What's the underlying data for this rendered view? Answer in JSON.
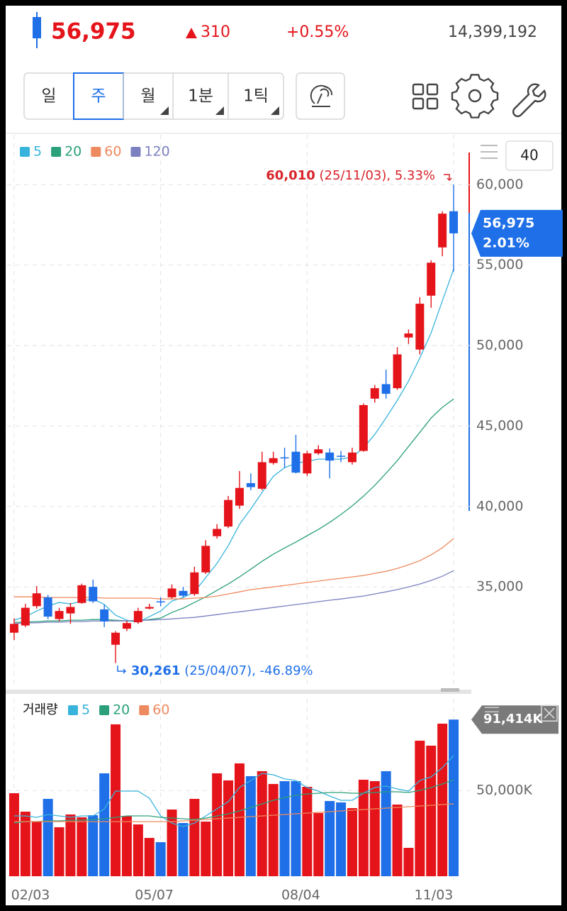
{
  "header": {
    "price": "56,975",
    "change": "310",
    "change_rate": "+0.55%",
    "volume": "14,399,192"
  },
  "toolbar": {
    "periods": [
      "일",
      "주",
      "월",
      "1분",
      "1틱"
    ],
    "selected": "주",
    "with_menu": [
      "월",
      "1분",
      "1틱"
    ]
  },
  "chart_data": [
    {
      "type": "candlestick",
      "visible_count": 40,
      "open": [
        32150,
        32600,
        33800,
        34350,
        33000,
        33350,
        34000,
        35000,
        33600,
        31400,
        32400,
        32800,
        33650,
        34100,
        34350,
        34750,
        34550,
        35900,
        38150,
        38750,
        40050,
        41450,
        41100,
        42700,
        43050,
        43400,
        42050,
        43300,
        43350,
        43150,
        42750,
        43450,
        46700,
        47600,
        47350,
        50500,
        49750,
        53100,
        56100,
        58350
      ],
      "high": [
        33050,
        33950,
        35050,
        34500,
        33700,
        34000,
        35200,
        35450,
        33900,
        32250,
        32900,
        33700,
        33950,
        34350,
        35150,
        35000,
        36250,
        37900,
        38900,
        40650,
        42200,
        42050,
        43400,
        43400,
        43650,
        44450,
        43450,
        43800,
        43600,
        43450,
        43650,
        46400,
        47550,
        48500,
        49900,
        51000,
        53000,
        55300,
        58350,
        60010
      ],
      "low": [
        31700,
        32500,
        33650,
        33000,
        32850,
        32700,
        33950,
        34000,
        32500,
        30261,
        32250,
        32700,
        33600,
        33800,
        34250,
        34350,
        34450,
        35800,
        38000,
        38650,
        39850,
        41000,
        41000,
        42600,
        42400,
        42050,
        41900,
        43200,
        41750,
        42750,
        42600,
        43400,
        46450,
        46700,
        47250,
        50100,
        49450,
        52350,
        55550,
        54600
      ],
      "close": [
        32700,
        33700,
        34600,
        33150,
        33500,
        33750,
        35100,
        34100,
        32850,
        32150,
        32750,
        33500,
        33750,
        34100,
        34900,
        34450,
        35900,
        37550,
        38600,
        40400,
        41150,
        41200,
        42750,
        43000,
        43050,
        42100,
        43300,
        43550,
        42850,
        43150,
        43350,
        46300,
        47350,
        47000,
        49450,
        50750,
        52600,
        55150,
        58200,
        56975
      ],
      "up_color": "#e5141b",
      "down_color": "#1e6fe8",
      "series": [
        {
          "name": "5",
          "color": "#38b4dc",
          "values": [
            32930,
            33150,
            33500,
            33810,
            34030,
            33940,
            34120,
            34250,
            33900,
            33240,
            32930,
            32800,
            33150,
            33500,
            34120,
            34340,
            34690,
            35580,
            36460,
            37560,
            38880,
            39850,
            40870,
            41880,
            42410,
            42680,
            42810,
            42940,
            42940,
            42940,
            43070,
            43640,
            44480,
            45500,
            46600,
            47790,
            49240,
            50790,
            52770,
            54760
          ]
        },
        {
          "name": "20",
          "color": "#2ba07b",
          "values": [
            32800,
            32800,
            32840,
            32880,
            32880,
            32930,
            32930,
            32970,
            32970,
            32930,
            32880,
            32880,
            32970,
            33060,
            33410,
            33680,
            34030,
            34380,
            34780,
            35180,
            35620,
            36100,
            36590,
            37030,
            37420,
            37780,
            38180,
            38570,
            39010,
            39500,
            40030,
            40640,
            41310,
            42060,
            42850,
            43730,
            44610,
            45500,
            46160,
            46680
          ]
        },
        {
          "name": "60",
          "color": "#ee8a5f",
          "values": [
            34380,
            34380,
            34380,
            34340,
            34340,
            34340,
            34340,
            34340,
            34300,
            34300,
            34300,
            34300,
            34300,
            34250,
            34250,
            34250,
            34300,
            34340,
            34430,
            34560,
            34690,
            34830,
            34910,
            35000,
            35090,
            35180,
            35270,
            35360,
            35450,
            35530,
            35620,
            35710,
            35840,
            35970,
            36150,
            36370,
            36630,
            36990,
            37430,
            38000
          ]
        },
        {
          "name": "120",
          "color": "#7b80c0",
          "values": [
            32710,
            32760,
            32760,
            32800,
            32800,
            32840,
            32840,
            32880,
            32880,
            32880,
            32880,
            32930,
            32930,
            32970,
            33010,
            33060,
            33100,
            33190,
            33280,
            33370,
            33450,
            33540,
            33630,
            33720,
            33810,
            33900,
            33990,
            34080,
            34170,
            34250,
            34340,
            34430,
            34560,
            34690,
            34830,
            35000,
            35180,
            35400,
            35660,
            36010
          ]
        }
      ],
      "ylim": [
        28700,
        63100
      ],
      "yticks": [
        {
          "value": 35000,
          "label": "35,000"
        },
        {
          "value": 40000,
          "label": "40,000"
        },
        {
          "value": 45000,
          "label": "45,000"
        },
        {
          "value": 50000,
          "label": "50,000"
        },
        {
          "value": 55000,
          "label": "55,000"
        },
        {
          "value": 60000,
          "label": "60,000"
        }
      ],
      "grid": true,
      "high_annotation": {
        "price": "60,010",
        "detail": "(25/11/03), 5.33%"
      },
      "low_annotation": {
        "price": "30,261",
        "detail": "(25/04/07), -46.89%"
      },
      "last_label": {
        "price": "56,975",
        "rate": "2.01%"
      }
    },
    {
      "type": "bar",
      "title": "거래량",
      "categories": [
        "02/03",
        null,
        null,
        null,
        null,
        null,
        null,
        null,
        null,
        null,
        null,
        null,
        null,
        "05/07",
        null,
        null,
        null,
        null,
        null,
        null,
        null,
        null,
        null,
        null,
        null,
        null,
        "08/04",
        null,
        null,
        null,
        null,
        null,
        null,
        null,
        null,
        null,
        null,
        null,
        null,
        "11/03"
      ],
      "values": [
        48450,
        37690,
        31890,
        45140,
        28580,
        36030,
        34370,
        35620,
        60050,
        88630,
        35200,
        30230,
        22360,
        19880,
        38930,
        31060,
        45140,
        31890,
        60050,
        55910,
        65850,
        58390,
        61290,
        53840,
        55490,
        55490,
        52180,
        36860,
        43900,
        43070,
        39760,
        56320,
        55490,
        61290,
        41830,
        16570,
        79100,
        76200,
        89040,
        91414
      ],
      "value_labels": [
        null,
        null,
        null,
        null,
        null,
        null,
        null,
        null,
        null,
        null,
        null,
        null,
        null,
        null,
        null,
        null,
        null,
        null,
        null,
        null,
        null,
        null,
        null,
        null,
        null,
        null,
        null,
        null,
        null,
        null,
        null,
        null,
        null,
        null,
        null,
        null,
        null,
        null,
        null,
        "91,414K"
      ],
      "series": [
        {
          "name": "5",
          "color": "#38b4dc",
          "values": [
            35200,
            35200,
            34370,
            36030,
            35200,
            34370,
            35200,
            35200,
            39340,
            49700,
            49700,
            49700,
            45560,
            35200,
            31060,
            28990,
            31060,
            35200,
            39340,
            43480,
            51770,
            55910,
            60050,
            59220,
            56740,
            55910,
            51770,
            49700,
            46800,
            44310,
            44310,
            48450,
            51770,
            52600,
            50940,
            49700,
            55910,
            57980,
            63360,
            70400
          ]
        },
        {
          "name": "20",
          "color": "#2ba07b",
          "values": [
            31060,
            31890,
            31890,
            32300,
            32300,
            32720,
            32720,
            33130,
            33550,
            34370,
            35200,
            35200,
            35200,
            34370,
            33960,
            33550,
            33130,
            33960,
            35200,
            36440,
            38100,
            40170,
            42240,
            44310,
            45970,
            47210,
            48040,
            48450,
            48870,
            48870,
            48450,
            48450,
            48870,
            49280,
            49280,
            48870,
            50110,
            51770,
            53840,
            56320
          ]
        },
        {
          "name": "60",
          "color": "#ee8a5f",
          "values": [
            31890,
            31890,
            31890,
            31890,
            31890,
            31890,
            31890,
            31890,
            31890,
            31890,
            31890,
            31890,
            31890,
            31890,
            31890,
            32300,
            32720,
            33130,
            33550,
            33960,
            34370,
            34790,
            35200,
            35620,
            36030,
            36440,
            36860,
            37270,
            37690,
            38100,
            38510,
            38930,
            39340,
            39760,
            40170,
            40590,
            41000,
            41410,
            41830,
            42240
          ]
        }
      ],
      "ylim": [
        0,
        103500
      ],
      "yticks": [
        {
          "value": 50000,
          "label": "50,000K"
        }
      ],
      "grid": true
    }
  ]
}
